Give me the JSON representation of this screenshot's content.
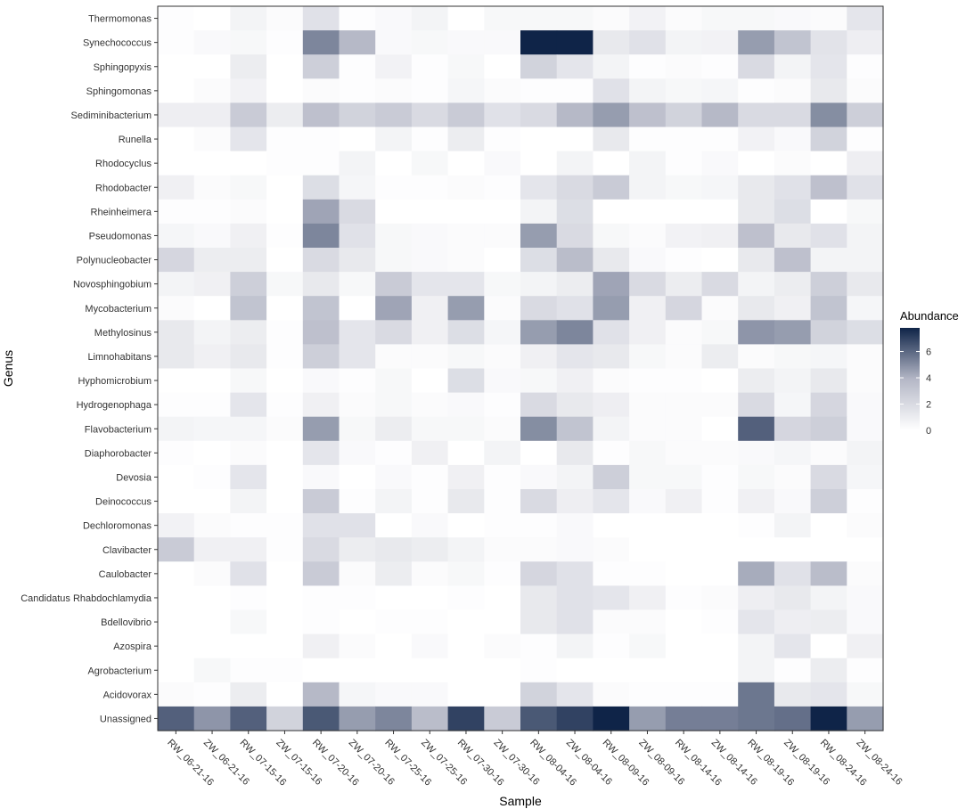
{
  "chart_data": {
    "type": "heatmap",
    "xlabel": "Sample",
    "ylabel": "Genus",
    "x": [
      "RW_06-21-16",
      "ZW_06-21-16",
      "RW_07-15-16",
      "ZW_07-15-16",
      "RW_07-20-16",
      "ZW_07-20-16",
      "RW_07-25-16",
      "ZW_07-25-16",
      "RW_07-30-16",
      "ZW_07-30-16",
      "RW_08-04-16",
      "ZW_08-04-16",
      "RW_08-09-16",
      "ZW_08-09-16",
      "RW_08-14-16",
      "ZW_08-14-16",
      "RW_08-19-16",
      "ZW_08-19-16",
      "RW_08-24-16",
      "ZW_08-24-16"
    ],
    "y": [
      "Thermomonas",
      "Synechococcus",
      "Sphingopyxis",
      "Sphingomonas",
      "Sediminibacterium",
      "Runella",
      "Rhodocyclus",
      "Rhodobacter",
      "Rheinheimera",
      "Pseudomonas",
      "Polynucleobacter",
      "Novosphingobium",
      "Mycobacterium",
      "Methylosinus",
      "Limnohabitans",
      "Hyphomicrobium",
      "Hydrogenophaga",
      "Flavobacterium",
      "Diaphorobacter",
      "Devosia",
      "Deinococcus",
      "Dechloromonas",
      "Clavibacter",
      "Caulobacter",
      "Candidatus Rhabdochlamydia",
      "Bdellovibrio",
      "Azospira",
      "Agrobacterium",
      "Acidovorax",
      "Unassigned"
    ],
    "values": [
      [
        0.1,
        0.0,
        0.6,
        0.2,
        1.6,
        0.1,
        0.3,
        0.6,
        0.0,
        0.4,
        0.4,
        0.4,
        0.2,
        0.7,
        0.2,
        0.4,
        0.4,
        0.3,
        0.2,
        1.4
      ],
      [
        0.1,
        0.3,
        0.4,
        0.1,
        5.2,
        3.8,
        0.3,
        0.4,
        0.3,
        0.3,
        7.8,
        7.8,
        1.2,
        1.6,
        0.6,
        0.7,
        4.6,
        3.2,
        1.5,
        0.9
      ],
      [
        0.0,
        0.0,
        1.0,
        0.0,
        2.6,
        0.1,
        0.7,
        0.1,
        0.4,
        0.0,
        2.4,
        1.4,
        0.6,
        0.1,
        0.2,
        0.1,
        2.0,
        0.6,
        1.4,
        0.1
      ],
      [
        0.0,
        0.2,
        0.7,
        0.0,
        0.2,
        0.1,
        0.2,
        0.1,
        0.5,
        0.2,
        0.1,
        0.1,
        1.6,
        0.6,
        0.4,
        0.5,
        0.1,
        0.2,
        1.2,
        0.2
      ],
      [
        0.9,
        0.9,
        2.8,
        1.0,
        3.4,
        2.4,
        2.8,
        2.0,
        2.8,
        1.6,
        2.0,
        3.8,
        4.6,
        3.4,
        2.4,
        3.8,
        2.0,
        2.0,
        5.0,
        2.6
      ],
      [
        0.0,
        0.2,
        1.4,
        0.1,
        0.1,
        0.0,
        0.6,
        0.1,
        1.0,
        0.1,
        0.0,
        0.0,
        1.2,
        0.1,
        0.1,
        0.1,
        0.7,
        0.3,
        2.4,
        0.1
      ],
      [
        0.0,
        0.0,
        0.0,
        0.1,
        0.1,
        0.6,
        0.0,
        0.4,
        0.0,
        0.3,
        0.0,
        0.6,
        0.0,
        0.6,
        0.1,
        0.3,
        0.0,
        0.2,
        0.0,
        0.9
      ],
      [
        0.8,
        0.2,
        0.4,
        0.0,
        1.8,
        0.5,
        0.1,
        0.1,
        0.2,
        0.1,
        1.4,
        2.0,
        2.8,
        0.6,
        0.4,
        0.5,
        1.2,
        1.6,
        3.4,
        1.6
      ],
      [
        0.1,
        0.1,
        0.2,
        0.0,
        4.4,
        2.0,
        0.0,
        0.0,
        0.0,
        0.0,
        0.6,
        1.8,
        0.0,
        0.0,
        0.0,
        0.0,
        1.2,
        1.8,
        0.0,
        0.4
      ],
      [
        0.5,
        0.3,
        0.8,
        0.1,
        5.2,
        1.6,
        0.4,
        0.3,
        0.2,
        0.2,
        4.6,
        2.0,
        0.4,
        0.2,
        0.7,
        0.8,
        3.4,
        1.2,
        1.6,
        0.6
      ],
      [
        2.2,
        1.0,
        1.0,
        0.0,
        2.0,
        1.2,
        0.4,
        0.3,
        0.2,
        0.0,
        1.8,
        3.6,
        1.2,
        0.3,
        0.1,
        0.0,
        1.2,
        3.4,
        0.6,
        0.6
      ],
      [
        0.6,
        0.8,
        2.6,
        0.4,
        1.2,
        0.4,
        2.8,
        1.4,
        1.4,
        0.4,
        0.6,
        1.0,
        4.4,
        2.0,
        1.0,
        2.0,
        0.6,
        1.0,
        2.6,
        1.2
      ],
      [
        0.2,
        0.0,
        3.2,
        0.0,
        3.2,
        0.0,
        4.4,
        0.8,
        4.6,
        0.2,
        2.0,
        1.6,
        4.6,
        0.8,
        2.2,
        0.2,
        1.2,
        0.8,
        3.2,
        0.5
      ],
      [
        1.2,
        0.6,
        1.0,
        0.1,
        3.4,
        1.4,
        2.0,
        0.8,
        1.8,
        0.5,
        4.6,
        5.2,
        1.6,
        0.8,
        0.2,
        0.4,
        4.8,
        4.6,
        2.4,
        1.8
      ],
      [
        1.2,
        0.8,
        1.2,
        0.1,
        2.6,
        1.4,
        0.2,
        0.2,
        0.4,
        0.2,
        0.8,
        1.4,
        1.2,
        0.4,
        0.2,
        1.0,
        0.2,
        0.4,
        0.5,
        0.2
      ],
      [
        0.0,
        0.0,
        0.4,
        0.0,
        0.3,
        0.1,
        0.4,
        0.0,
        1.8,
        0.3,
        0.4,
        0.8,
        0.2,
        0.1,
        0.1,
        0.0,
        1.0,
        0.6,
        1.2,
        0.2
      ],
      [
        0.1,
        0.1,
        1.4,
        0.1,
        0.8,
        0.2,
        0.4,
        0.2,
        0.3,
        0.1,
        2.0,
        1.2,
        0.9,
        0.2,
        0.2,
        0.2,
        2.0,
        0.5,
        2.2,
        0.3
      ],
      [
        0.6,
        0.5,
        0.5,
        0.2,
        4.6,
        0.4,
        1.0,
        0.4,
        0.4,
        0.2,
        5.0,
        3.2,
        0.6,
        0.2,
        0.2,
        0.0,
        6.2,
        2.2,
        2.6,
        0.3
      ],
      [
        0.1,
        0.0,
        0.2,
        0.0,
        1.4,
        0.3,
        0.1,
        0.8,
        0.0,
        0.6,
        0.0,
        1.2,
        0.1,
        0.4,
        0.2,
        0.2,
        0.3,
        0.5,
        0.2,
        0.6
      ],
      [
        0.0,
        0.1,
        1.4,
        0.0,
        0.3,
        0.0,
        0.3,
        0.1,
        0.8,
        0.1,
        0.3,
        0.6,
        2.6,
        0.4,
        0.4,
        0.1,
        0.4,
        0.2,
        2.0,
        0.5
      ],
      [
        0.0,
        0.0,
        0.6,
        0.0,
        2.8,
        0.1,
        0.6,
        0.1,
        1.2,
        0.1,
        2.0,
        0.9,
        1.4,
        0.3,
        0.8,
        0.1,
        0.8,
        0.3,
        2.6,
        0.1
      ],
      [
        0.7,
        0.2,
        0.1,
        0.1,
        1.6,
        1.6,
        0.0,
        0.3,
        0.0,
        0.1,
        0.1,
        0.3,
        0.0,
        0.0,
        0.0,
        0.0,
        0.1,
        0.6,
        0.0,
        0.2
      ],
      [
        2.8,
        0.8,
        0.8,
        0.1,
        2.0,
        1.0,
        1.2,
        1.0,
        0.6,
        0.2,
        0.2,
        0.3,
        0.2,
        0.0,
        0.0,
        0.0,
        0.0,
        0.0,
        0.0,
        0.0
      ],
      [
        0.0,
        0.2,
        1.6,
        0.0,
        2.8,
        0.2,
        1.0,
        0.2,
        0.4,
        0.1,
        2.2,
        1.6,
        0.1,
        0.1,
        0.0,
        0.0,
        4.2,
        1.6,
        3.6,
        0.2
      ],
      [
        0.0,
        0.0,
        0.1,
        0.0,
        0.1,
        0.1,
        0.0,
        0.0,
        0.1,
        0.0,
        1.2,
        1.6,
        1.4,
        0.8,
        0.1,
        0.2,
        0.9,
        1.2,
        0.6,
        0.3
      ],
      [
        0.0,
        0.0,
        0.4,
        0.0,
        0.1,
        0.0,
        0.1,
        0.1,
        0.0,
        0.0,
        1.2,
        1.6,
        0.2,
        0.2,
        0.0,
        0.1,
        1.4,
        0.9,
        1.0,
        0.3
      ],
      [
        0.0,
        0.0,
        0.0,
        0.0,
        0.8,
        0.2,
        0.0,
        0.3,
        0.0,
        0.2,
        0.1,
        0.6,
        0.1,
        0.4,
        0.0,
        0.0,
        0.6,
        1.4,
        0.0,
        0.8
      ],
      [
        0.0,
        0.4,
        0.1,
        0.1,
        0.0,
        0.0,
        0.0,
        0.0,
        0.0,
        0.0,
        0.1,
        0.0,
        0.0,
        0.0,
        0.0,
        0.0,
        0.6,
        0.1,
        1.0,
        0.1
      ],
      [
        0.2,
        0.1,
        1.0,
        0.0,
        3.8,
        0.5,
        0.3,
        0.3,
        0.0,
        0.0,
        2.4,
        1.4,
        0.2,
        0.1,
        0.1,
        0.1,
        5.6,
        1.2,
        1.4,
        0.4
      ],
      [
        6.2,
        4.8,
        6.2,
        2.4,
        6.4,
        4.6,
        5.2,
        3.6,
        7.0,
        2.8,
        6.4,
        7.0,
        7.8,
        4.6,
        5.4,
        5.4,
        5.6,
        5.8,
        7.8,
        4.6
      ]
    ],
    "legend": {
      "title": "Abundance",
      "ticks": [
        0,
        2,
        4,
        6
      ],
      "range": [
        0,
        7.8
      ],
      "color_low": "#ffffff",
      "color_mid": "#b4b7c6",
      "color_high": "#0f2448"
    },
    "grid": false
  }
}
